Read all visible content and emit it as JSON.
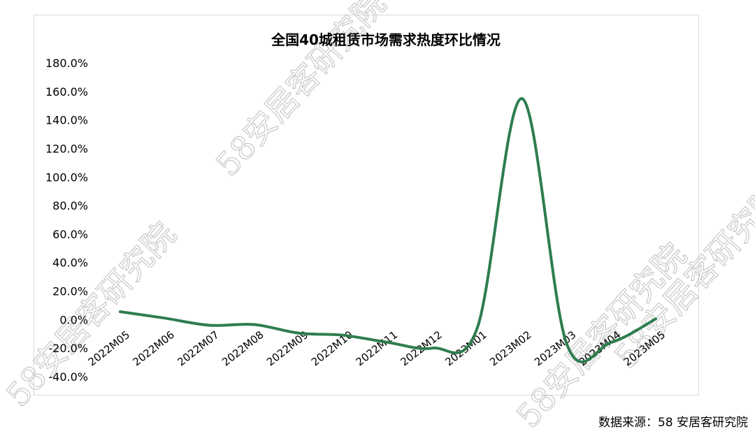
{
  "chart_data": {
    "type": "line",
    "title": "全国40城租赁市场需求热度环比情况",
    "xlabel": "",
    "ylabel": "",
    "categories": [
      "2022M05",
      "2022M06",
      "2022M07",
      "2022M08",
      "2022M09",
      "2022M10",
      "2022M11",
      "2022M12",
      "2023M01",
      "2023M02",
      "2023M03",
      "2023M04",
      "2023M05"
    ],
    "series": [
      {
        "values": [
          5.5,
          1.0,
          -4.0,
          -3.5,
          -9.5,
          -11.0,
          -16.0,
          -20.0,
          -6.0,
          155.0,
          -16.5,
          -16.0,
          0.5
        ]
      }
    ],
    "ylim": [
      -40,
      180
    ],
    "yticks": [
      180,
      160,
      140,
      120,
      100,
      80,
      60,
      40,
      20,
      0,
      -20,
      -40
    ],
    "ytick_labels": [
      "180.0%",
      "160.0%",
      "140.0%",
      "120.0%",
      "100.0%",
      "80.0%",
      "60.0%",
      "40.0%",
      "20.0%",
      "0.0%",
      "-20.0%",
      "-40.0%"
    ],
    "grid": false,
    "legend": "none",
    "line_color": "#2e7d4f"
  },
  "watermark": {
    "text": "58安居客研究院"
  },
  "source_note": "数据来源：58 安居客研究院"
}
